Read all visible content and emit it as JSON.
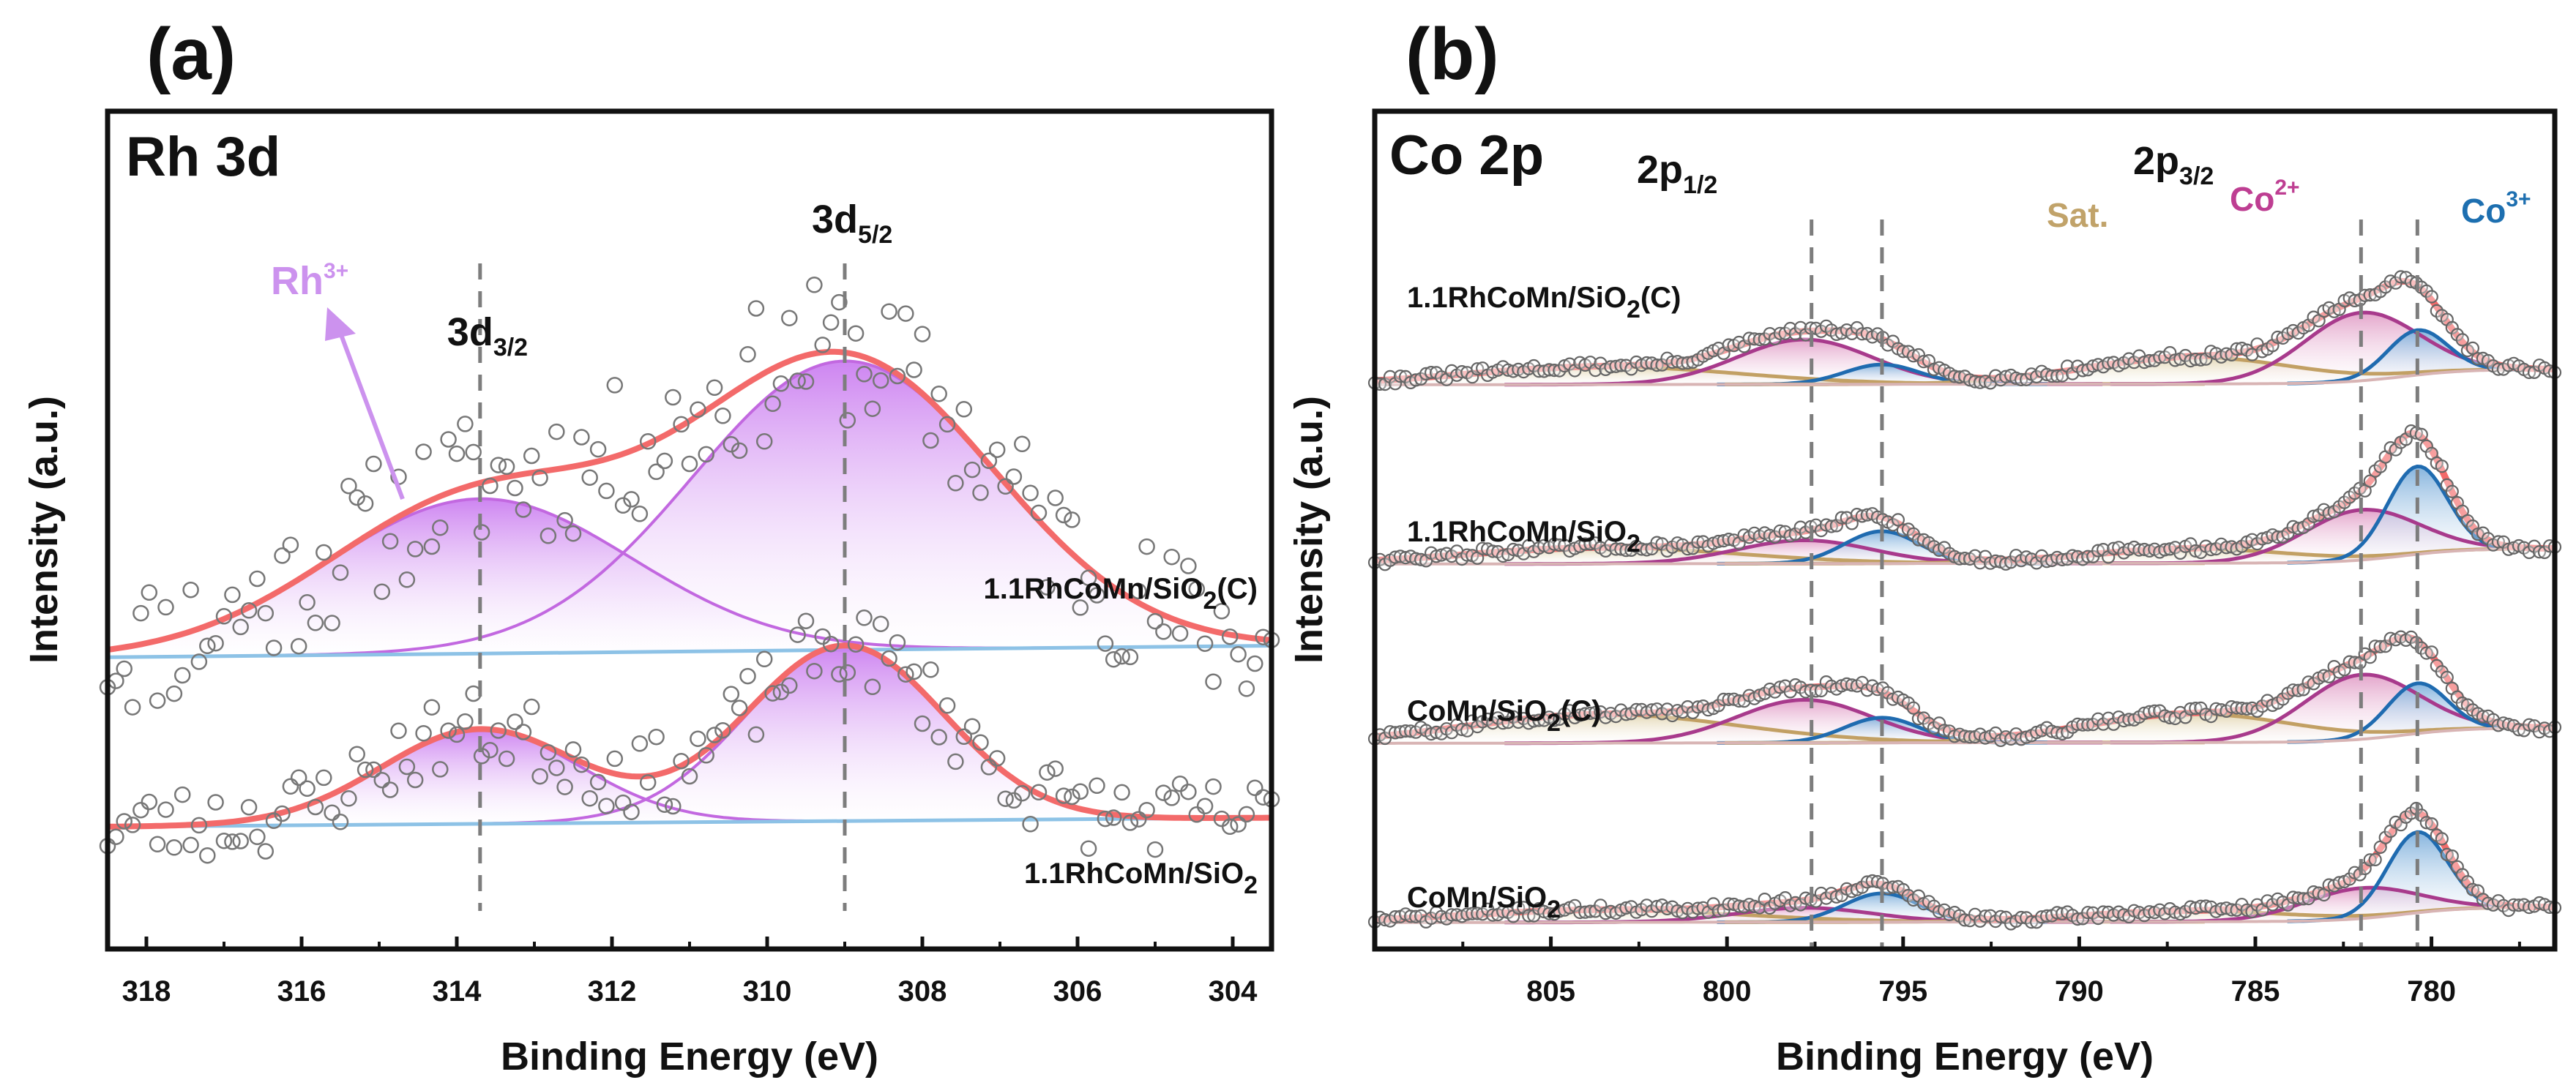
{
  "chart_data": [
    {
      "type": "line",
      "panel_label": "(a)",
      "title": "Rh 3d",
      "xlabel": "Binding Energy (eV)",
      "ylabel": "Intensity (a.u.)",
      "xlim": [
        318.5,
        303.5
      ],
      "x_reversed": true,
      "x_ticks": [
        "318",
        "316",
        "314",
        "312",
        "310",
        "308",
        "306",
        "304"
      ],
      "x_tick_values": [
        318,
        316,
        314,
        312,
        310,
        308,
        306,
        304
      ],
      "y_ticks": false,
      "peak_positions": [
        313.7,
        309.0
      ],
      "peak_labels": [
        {
          "main": "3d",
          "sub": "3/2",
          "x": 313.7
        },
        {
          "main": "3d",
          "sub": "5/2",
          "x": 309.0
        }
      ],
      "annotation": {
        "text": "Rh",
        "sup": "3+",
        "arrow": true
      },
      "legend": null,
      "colors": {
        "fit_envelope": "#f36a6a",
        "component_line": "#c268e0",
        "component_fill": "#cb7ef0",
        "background": "#8dc2e6",
        "data_marker": "#777777",
        "arrow": "#cc92ee",
        "guide": "#7d7d7d"
      },
      "series": [
        {
          "name": "1.1RhCoMn/SiO2(C)",
          "label_main": "1.1RhCoMn/SiO",
          "label_sub": "2",
          "label_tail": "(C)",
          "baseline_intensity": 100,
          "components": [
            {
              "name": "3d3/2",
              "center": 313.7,
              "height": 90,
              "fwhm": 4.6
            },
            {
              "name": "3d5/2",
              "center": 309.0,
              "height": 168,
              "fwhm": 4.6
            }
          ],
          "background_slope": -0.45,
          "noise_amplitude": 42,
          "seed": 11
        },
        {
          "name": "1.1RhCoMn/SiO2",
          "label_main": "1.1RhCoMn/SiO",
          "label_sub": "2",
          "label_tail": "",
          "baseline_intensity": 0,
          "components": [
            {
              "name": "3d3/2",
              "center": 313.7,
              "height": 55,
              "fwhm": 3.0
            },
            {
              "name": "3d5/2",
              "center": 309.0,
              "height": 102,
              "fwhm": 3.0
            }
          ],
          "background_slope": -0.35,
          "noise_amplitude": 22,
          "seed": 23
        }
      ]
    },
    {
      "type": "line",
      "panel_label": "(b)",
      "title": "Co 2p",
      "xlabel": "Binding Energy (eV)",
      "ylabel": "Intensity (a.u.)",
      "xlim": [
        810,
        776.5
      ],
      "x_reversed": true,
      "x_ticks": [
        "805",
        "800",
        "795",
        "790",
        "785",
        "780"
      ],
      "x_tick_values": [
        805,
        800,
        795,
        790,
        785,
        780
      ],
      "y_ticks": false,
      "peak_positions": [
        797.6,
        795.6,
        782.0,
        780.4
      ],
      "peak_labels": [
        {
          "main": "2p",
          "sub": "1/2",
          "x": 797.6
        },
        {
          "main": "2p",
          "sub": "3/2",
          "x": 782.0
        }
      ],
      "annotations": [
        {
          "text": "Sat.",
          "color": "#c1a36a"
        },
        {
          "text": "Co",
          "sup": "2+",
          "color": "#be3e92"
        },
        {
          "text": "Co",
          "sup": "3+",
          "color": "#1d6fb0"
        }
      ],
      "legend": null,
      "colors": {
        "fit_envelope": "#f36a6a",
        "co2_line": "#a83a8c",
        "co2_fill": "#e2a0c8",
        "co3_line": "#1f6bb0",
        "co3_fill": "#7fb0dc",
        "sat_line": "#c2a064",
        "sat_fill": "#e2d5b0",
        "background": "#d8b4b4",
        "data_marker": "#666666",
        "guide": "#7d7d7d"
      },
      "series": [
        {
          "name": "1.1RhCoMn/SiO2(C)",
          "label_main": "1.1RhCoMn/SiO",
          "label_sub": "2",
          "label_tail": "(C)",
          "offset": 300,
          "components": [
            {
              "type": "sat",
              "center": 803.5,
              "height": 10,
              "fwhm": 9
            },
            {
              "type": "co2",
              "center": 797.8,
              "height": 25,
              "fwhm": 4.5
            },
            {
              "type": "co3",
              "center": 795.6,
              "height": 11,
              "fwhm": 2.5
            },
            {
              "type": "sat",
              "center": 786.8,
              "height": 15,
              "fwhm": 7
            },
            {
              "type": "co2",
              "center": 782.0,
              "height": 38,
              "fwhm": 3.8
            },
            {
              "type": "co3",
              "center": 780.4,
              "height": 25,
              "fwhm": 2.0
            }
          ],
          "seed": 31
        },
        {
          "name": "1.1RhCoMn/SiO2",
          "label_main": "1.1RhCoMn/SiO",
          "label_sub": "2",
          "label_tail": "",
          "offset": 200,
          "components": [
            {
              "type": "sat",
              "center": 803.5,
              "height": 9,
              "fwhm": 9
            },
            {
              "type": "co2",
              "center": 797.8,
              "height": 13,
              "fwhm": 4.5
            },
            {
              "type": "co3",
              "center": 795.6,
              "height": 18,
              "fwhm": 2.5
            },
            {
              "type": "sat",
              "center": 786.8,
              "height": 8,
              "fwhm": 7
            },
            {
              "type": "co2",
              "center": 782.0,
              "height": 28,
              "fwhm": 3.8
            },
            {
              "type": "co3",
              "center": 780.4,
              "height": 49,
              "fwhm": 2.0
            }
          ],
          "seed": 47
        },
        {
          "name": "CoMn/SiO2(C)",
          "label_main": "CoMn/SiO",
          "label_sub": "2",
          "label_tail": "(C)",
          "offset": 100,
          "components": [
            {
              "type": "sat",
              "center": 803.5,
              "height": 16,
              "fwhm": 9
            },
            {
              "type": "co2",
              "center": 797.8,
              "height": 24,
              "fwhm": 4.5
            },
            {
              "type": "co3",
              "center": 795.6,
              "height": 14,
              "fwhm": 2.5
            },
            {
              "type": "sat",
              "center": 786.8,
              "height": 16,
              "fwhm": 7
            },
            {
              "type": "co2",
              "center": 782.0,
              "height": 36,
              "fwhm": 3.8
            },
            {
              "type": "co3",
              "center": 780.4,
              "height": 28,
              "fwhm": 2.0
            }
          ],
          "seed": 59
        },
        {
          "name": "CoMn/SiO2",
          "label_main": "CoMn/SiO",
          "label_sub": "2",
          "label_tail": "",
          "offset": 0,
          "components": [
            {
              "type": "sat",
              "center": 803.5,
              "height": 7,
              "fwhm": 9
            },
            {
              "type": "co2",
              "center": 797.8,
              "height": 8,
              "fwhm": 4.5
            },
            {
              "type": "co3",
              "center": 795.6,
              "height": 16,
              "fwhm": 2.5
            },
            {
              "type": "sat",
              "center": 786.8,
              "height": 6,
              "fwhm": 7
            },
            {
              "type": "co2",
              "center": 782.0,
              "height": 17,
              "fwhm": 3.8
            },
            {
              "type": "co3",
              "center": 780.4,
              "height": 45,
              "fwhm": 2.0
            }
          ],
          "seed": 71
        }
      ]
    }
  ]
}
